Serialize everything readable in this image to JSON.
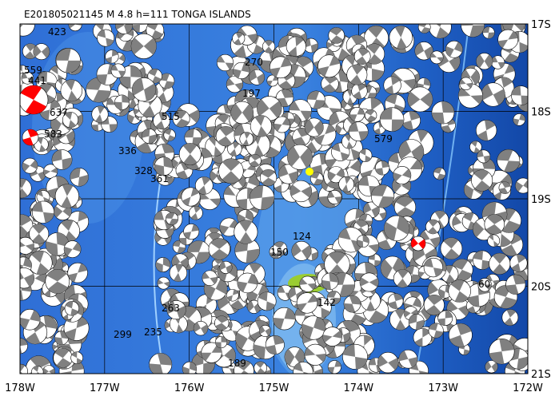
{
  "header": {
    "title": "E201805021145 M 4.8 h=111 TONGA ISLANDS"
  },
  "axes": {
    "lon_labels": [
      "178W",
      "177W",
      "176W",
      "175W",
      "174W",
      "173W",
      "172W"
    ],
    "lat_labels": [
      "17S",
      "18S",
      "19S",
      "20S",
      "21S"
    ]
  },
  "events": [
    {
      "label": "559"
    },
    {
      "label": "441"
    },
    {
      "label": "637"
    },
    {
      "label": "583"
    },
    {
      "label": "423"
    },
    {
      "label": "336"
    },
    {
      "label": "328"
    },
    {
      "label": "270"
    },
    {
      "label": "197"
    },
    {
      "label": "515"
    },
    {
      "label": "299"
    },
    {
      "label": "235"
    },
    {
      "label": "124"
    },
    {
      "label": "150"
    },
    {
      "label": "142"
    },
    {
      "label": "579"
    },
    {
      "label": "263"
    },
    {
      "label": "189"
    },
    {
      "label": "361"
    },
    {
      "label": "60"
    }
  ]
}
